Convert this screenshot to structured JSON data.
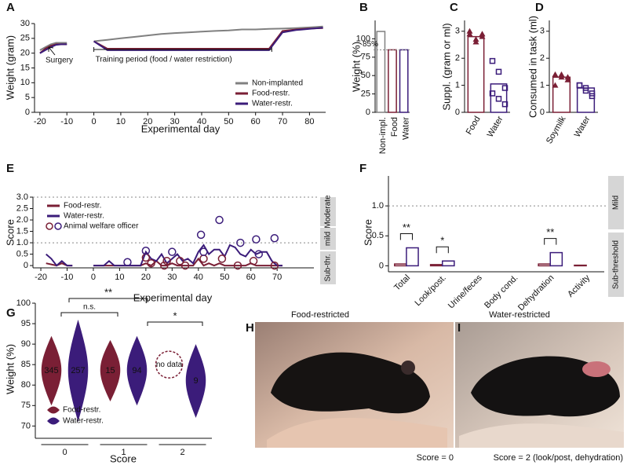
{
  "chart_data": [
    {
      "type": "line",
      "label": "A",
      "xlabel": "Experimental day",
      "ylabel": "Weight (gram)",
      "x": [
        -20,
        -18,
        -16,
        -14,
        -12,
        -10,
        -5,
        0,
        5,
        10,
        15,
        20,
        25,
        30,
        35,
        40,
        45,
        50,
        55,
        60,
        65,
        70,
        75,
        80,
        85
      ],
      "xlim": [
        -22,
        86
      ],
      "xticks": [
        -20,
        -10,
        0,
        10,
        20,
        30,
        40,
        50,
        60,
        70,
        80
      ],
      "ylim": [
        0,
        30
      ],
      "yticks": [
        0,
        5,
        10,
        15,
        20,
        25,
        30
      ],
      "series": [
        {
          "name": "Non-implanted",
          "color": "#808080",
          "values": [
            21,
            22,
            23,
            23.5,
            23.5,
            23.5,
            null,
            24,
            24.5,
            25,
            25.5,
            26,
            26.5,
            26.8,
            27,
            27.3,
            27.5,
            27.7,
            28,
            28,
            28.2,
            28.3,
            28.5,
            28.7,
            29
          ]
        },
        {
          "name": "Food-restr.",
          "color": "#7a1f35",
          "values": [
            20,
            21.5,
            22.5,
            23,
            23,
            23,
            null,
            24,
            21.5,
            21.5,
            21.5,
            21.5,
            21.5,
            21.5,
            21.5,
            21.5,
            21.5,
            21.5,
            21.5,
            21.5,
            21.5,
            27.5,
            28,
            28.3,
            28.5
          ]
        },
        {
          "name": "Water-restr.",
          "color": "#3b1c7a",
          "values": [
            20,
            21,
            22,
            22.8,
            23,
            23,
            null,
            24,
            21,
            21,
            21,
            21,
            21,
            21,
            21,
            21,
            21,
            21,
            21,
            21,
            21,
            27,
            27.8,
            28.2,
            28.6
          ]
        }
      ],
      "annotations": [
        "Surgery",
        "Training period (food / water restriction)"
      ]
    },
    {
      "type": "bar",
      "label": "B",
      "ylabel": "Weight (%)",
      "categories": [
        "Non-impl.",
        "Food",
        "Water"
      ],
      "values": [
        110,
        85,
        85
      ],
      "colors": [
        "#808080",
        "#7a1f35",
        "#3b1c7a"
      ],
      "ylim": [
        0,
        125
      ],
      "yticks": [
        0,
        25,
        50,
        75,
        100
      ],
      "reference_line": {
        "value": 85,
        "label": "85%"
      }
    },
    {
      "type": "bar",
      "label": "C",
      "ylabel": "Suppl. (gram or ml)",
      "categories": [
        "Food",
        "Water"
      ],
      "values": [
        2.8,
        1.05
      ],
      "colors": [
        "#7a1f35",
        "#3b1c7a"
      ],
      "markers": [
        "triangle",
        "square"
      ],
      "points": [
        [
          2.9,
          2.7,
          2.8,
          3.0,
          2.6,
          2.9
        ],
        [
          1.9,
          1.5,
          0.9,
          0.7,
          0.5,
          0.3
        ]
      ],
      "ylim": [
        0,
        3.4
      ],
      "yticks": [
        0,
        1,
        2,
        3
      ]
    },
    {
      "type": "bar",
      "label": "D",
      "ylabel": "Consumed in task (ml)",
      "categories": [
        "Soymilk",
        "Water"
      ],
      "values": [
        1.3,
        0.9
      ],
      "colors": [
        "#7a1f35",
        "#3b1c7a"
      ],
      "markers": [
        "triangle",
        "square"
      ],
      "points": [
        [
          1.4,
          1.3,
          1.2,
          1.0,
          1.4,
          1.3
        ],
        [
          1.0,
          0.8,
          0.7,
          1.0,
          0.9,
          0.6
        ]
      ],
      "ylim": [
        0,
        3.4
      ],
      "yticks": [
        0,
        1,
        2,
        3
      ]
    },
    {
      "type": "line",
      "label": "E",
      "xlabel": "Experimental day",
      "ylabel": "Score",
      "x": [
        -18,
        -16,
        -14,
        -12,
        -10,
        -8,
        -4,
        0,
        2,
        4,
        6,
        8,
        10,
        12,
        14,
        16,
        18,
        20,
        22,
        24,
        26,
        28,
        30,
        32,
        34,
        36,
        38,
        40,
        42,
        44,
        46,
        48,
        50,
        52,
        54,
        56,
        58,
        60,
        62,
        64,
        66,
        68,
        70,
        72
      ],
      "xlim": [
        -23,
        84
      ],
      "xticks": [
        -20,
        -10,
        0,
        10,
        20,
        30,
        40,
        50,
        60,
        70
      ],
      "ylim": [
        -0.1,
        3.0
      ],
      "yticks": [
        0,
        0.5,
        {
          "value": 1,
          "label": "1.0"
        },
        1.5,
        {
          "value": 2,
          "label": "2.0"
        },
        2.5,
        {
          "value": 3,
          "label": "3.0"
        }
      ],
      "hlines": [
        1,
        3
      ],
      "series": [
        {
          "name": "Food-restr.",
          "color": "#7a1f35",
          "values": [
            0.1,
            0.05,
            0,
            0.1,
            0,
            0,
            null,
            0,
            0,
            0,
            0,
            0,
            0,
            0,
            0,
            0,
            0,
            0.1,
            0,
            0.2,
            0,
            0,
            0.1,
            0,
            0,
            0,
            0,
            0.3,
            0,
            0.1,
            0,
            0.1,
            0,
            0,
            0,
            0,
            0,
            0.1,
            0,
            0,
            0,
            0,
            0,
            0
          ]
        },
        {
          "name": "Water-restr.",
          "color": "#3b1c7a",
          "values": [
            0.5,
            0.3,
            0,
            0.2,
            0,
            0,
            null,
            0,
            0,
            0,
            0.2,
            0,
            0,
            0,
            0,
            0,
            0,
            0.6,
            0.3,
            0.2,
            0.5,
            0.1,
            0.3,
            0.5,
            0.2,
            0.3,
            0.1,
            0.6,
            0.9,
            0.5,
            0.7,
            0.7,
            0.4,
            0.9,
            0.8,
            0.5,
            0.4,
            0.7,
            0.5,
            0.6,
            0.6,
            0.2,
            0,
            0
          ]
        }
      ],
      "scatter": {
        "name": "Animal welfare officer",
        "series": [
          {
            "color": "#7a1f35",
            "x": [
              20,
              22,
              27,
              28,
              33,
              35,
              42,
              49,
              55,
              61,
              69
            ],
            "y": [
              0.35,
              0.1,
              0,
              0.2,
              0.2,
              0,
              0.3,
              0.3,
              0,
              0.2,
              0
            ]
          },
          {
            "color": "#3b1c7a",
            "x": [
              13,
              20,
              30,
              41,
              42,
              48,
              56,
              62,
              63,
              69
            ],
            "y": [
              0.15,
              0.65,
              0.6,
              1.35,
              0.6,
              2.0,
              1.0,
              1.15,
              0.5,
              1.2
            ]
          }
        ]
      },
      "levels": [
        "Moderate",
        "mild",
        "Sub-thr."
      ]
    },
    {
      "type": "bar",
      "label": "F",
      "ylabel": "Score",
      "categories": [
        "Total",
        "Look/post.",
        "Urine/feces",
        "Body cond.",
        "Dehydration",
        "Activity"
      ],
      "series": [
        {
          "name": "Food-restr.",
          "color": "#7a1f35",
          "values": [
            0.03,
            0.02,
            0,
            0,
            0.03,
            0.01
          ]
        },
        {
          "name": "Water-restr.",
          "color": "#3b1c7a",
          "values": [
            0.3,
            0.08,
            0,
            0,
            0.22,
            0
          ]
        }
      ],
      "significance": [
        "**",
        "*",
        null,
        null,
        "**",
        null
      ],
      "ylim": [
        -0.1,
        1.5
      ],
      "yticks": [
        0,
        0.5,
        {
          "value": 1,
          "label": "1.0"
        }
      ],
      "hlines": [
        1
      ],
      "levels": [
        "Mild",
        "Sub-threshold"
      ]
    },
    {
      "type": "violin",
      "label": "G",
      "xlabel": "Score",
      "ylabel": "Weight (%)",
      "categories": [
        "0",
        "1",
        "2"
      ],
      "ylim": [
        67,
        100
      ],
      "yticks": [
        70,
        75,
        80,
        85,
        90,
        95,
        100
      ],
      "series": [
        {
          "name": "Food-restr.",
          "color": "#7a1f35",
          "min": [
            75,
            76,
            null
          ],
          "max": [
            92,
            91,
            null
          ],
          "n": [
            345,
            15,
            null
          ]
        },
        {
          "name": "Water-restr.",
          "color": "#3b1c7a",
          "min": [
            71,
            75,
            72
          ],
          "max": [
            96,
            92,
            90
          ],
          "n": [
            257,
            94,
            9
          ]
        }
      ],
      "no_data_label": "no data",
      "comparisons": [
        "n.s.",
        "**",
        "*"
      ]
    }
  ],
  "photos": [
    {
      "label": "H",
      "title": "Food-restricted",
      "caption": "Score = 0"
    },
    {
      "label": "I",
      "title": "Water-restricted",
      "caption": "Score = 2 (look/post, dehydration)"
    }
  ]
}
